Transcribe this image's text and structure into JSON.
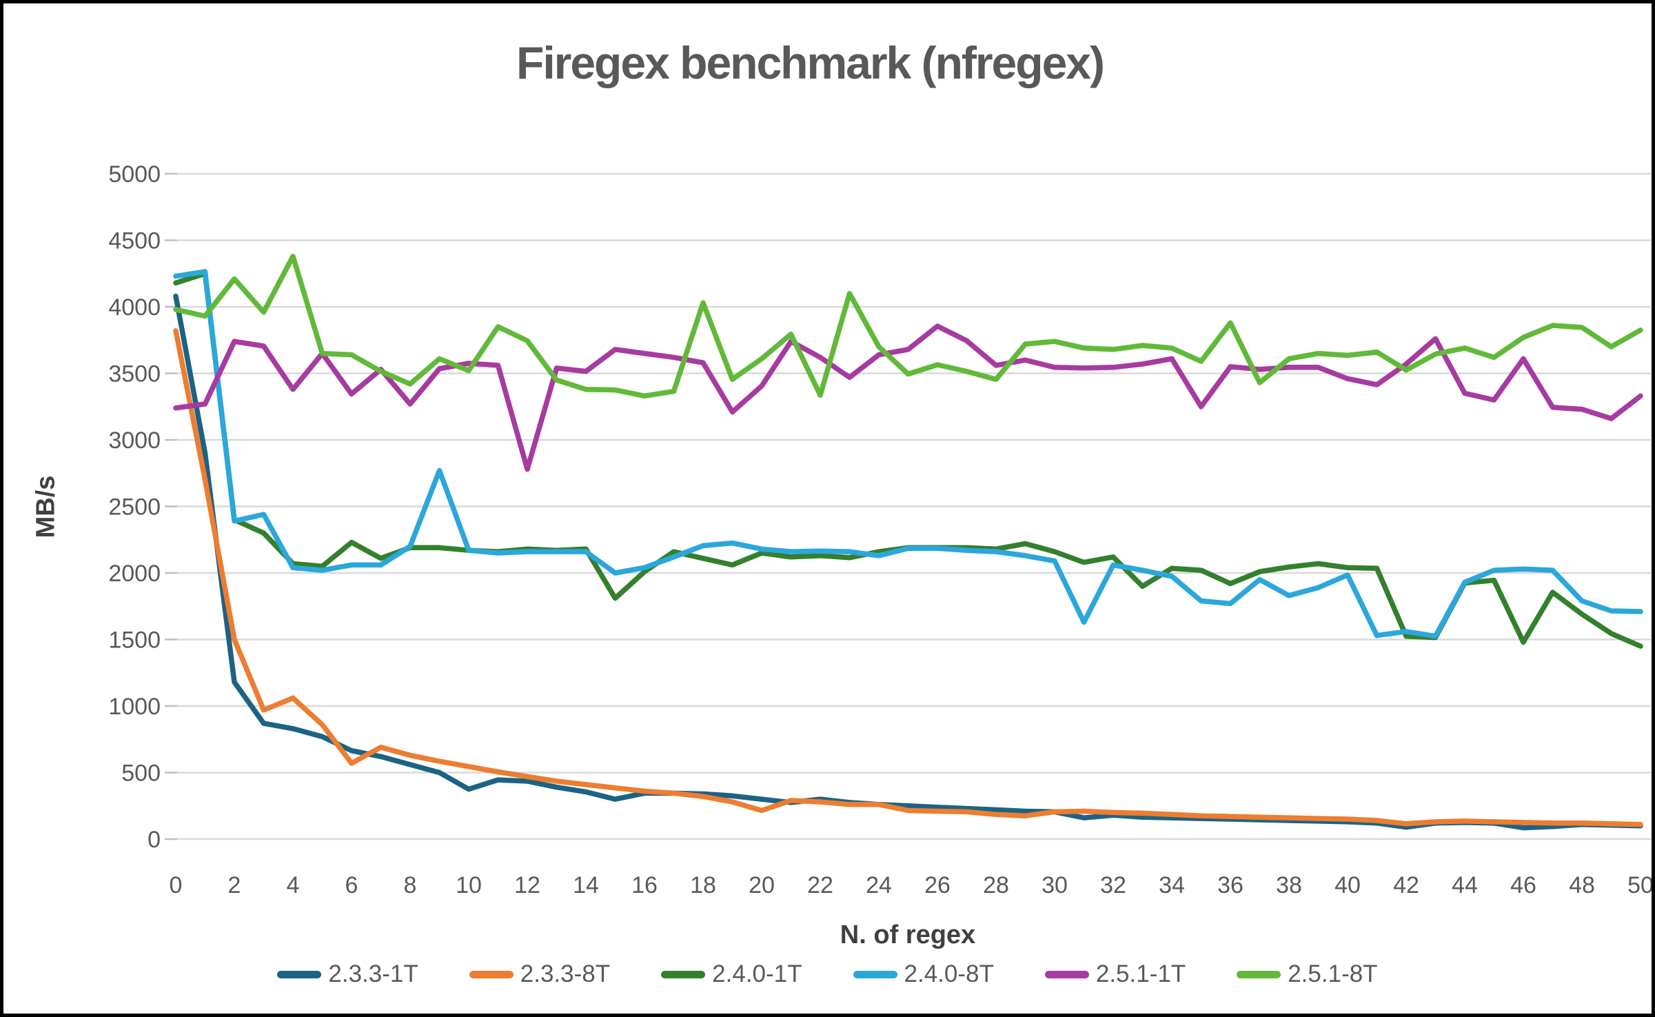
{
  "title": "Firegex benchmark (nfregex)",
  "chart_data": {
    "type": "line",
    "title": "Firegex benchmark (nfregex)",
    "xlabel": "N. of regex",
    "ylabel": "MB/s",
    "xlim": [
      0,
      50
    ],
    "ylim": [
      0,
      5000
    ],
    "grid": true,
    "legend_position": "bottom",
    "x_ticks": [
      0,
      2,
      4,
      6,
      8,
      10,
      12,
      14,
      16,
      18,
      20,
      22,
      24,
      26,
      28,
      30,
      32,
      34,
      36,
      38,
      40,
      42,
      44,
      46,
      48,
      50
    ],
    "y_ticks": [
      0,
      500,
      1000,
      1500,
      2000,
      2500,
      3000,
      3500,
      4000,
      4500,
      5000
    ],
    "x": [
      0,
      1,
      2,
      3,
      4,
      5,
      6,
      7,
      8,
      9,
      10,
      11,
      12,
      13,
      14,
      15,
      16,
      17,
      18,
      19,
      20,
      21,
      22,
      23,
      24,
      25,
      26,
      27,
      28,
      29,
      30,
      31,
      32,
      33,
      34,
      35,
      36,
      37,
      38,
      39,
      40,
      41,
      42,
      43,
      44,
      45,
      46,
      47,
      48,
      49,
      50
    ],
    "series": [
      {
        "name": "2.3.3-1T",
        "color": "#1C6383",
        "values": [
          4080,
          2900,
          1180,
          870,
          830,
          770,
          665,
          620,
          560,
          500,
          375,
          445,
          435,
          390,
          355,
          300,
          345,
          345,
          340,
          325,
          300,
          275,
          300,
          275,
          260,
          250,
          240,
          230,
          220,
          210,
          205,
          160,
          180,
          165,
          160,
          155,
          150,
          145,
          140,
          135,
          130,
          120,
          90,
          120,
          125,
          120,
          85,
          95,
          110,
          105,
          100
        ]
      },
      {
        "name": "2.3.3-8T",
        "color": "#ED7D31",
        "values": [
          3820,
          2700,
          1500,
          970,
          1060,
          860,
          570,
          690,
          630,
          585,
          545,
          505,
          470,
          435,
          410,
          385,
          360,
          345,
          320,
          280,
          215,
          290,
          280,
          260,
          260,
          215,
          210,
          205,
          185,
          175,
          205,
          210,
          200,
          195,
          185,
          175,
          170,
          165,
          160,
          155,
          150,
          140,
          115,
          130,
          135,
          130,
          125,
          120,
          120,
          115,
          110
        ]
      },
      {
        "name": "2.4.0-1T",
        "color": "#33802D",
        "values": [
          4180,
          4250,
          2400,
          2300,
          2070,
          2050,
          2230,
          2110,
          2190,
          2190,
          2170,
          2160,
          2180,
          2170,
          2180,
          1810,
          2010,
          2160,
          2110,
          2060,
          2150,
          2120,
          2130,
          2115,
          2160,
          2190,
          2190,
          2190,
          2180,
          2220,
          2160,
          2080,
          2120,
          1900,
          2035,
          2020,
          1920,
          2010,
          2045,
          2070,
          2040,
          2035,
          1525,
          1515,
          1925,
          1945,
          1480,
          1855,
          1690,
          1545,
          1450
        ]
      },
      {
        "name": "2.4.0-8T",
        "color": "#2BA7DC",
        "values": [
          4230,
          4265,
          2390,
          2440,
          2040,
          2020,
          2060,
          2060,
          2200,
          2770,
          2170,
          2150,
          2160,
          2160,
          2160,
          2000,
          2040,
          2120,
          2205,
          2225,
          2180,
          2160,
          2165,
          2160,
          2130,
          2185,
          2185,
          2170,
          2160,
          2130,
          2090,
          1630,
          2060,
          2020,
          1975,
          1790,
          1770,
          1950,
          1830,
          1890,
          1985,
          1530,
          1560,
          1525,
          1930,
          2020,
          2030,
          2020,
          1790,
          1715,
          1710
        ]
      },
      {
        "name": "2.5.1-1T",
        "color": "#A63BA0",
        "values": [
          3240,
          3270,
          3740,
          3705,
          3380,
          3650,
          3345,
          3530,
          3270,
          3535,
          3575,
          3560,
          2780,
          3540,
          3515,
          3680,
          3650,
          3620,
          3580,
          3210,
          3405,
          3740,
          3620,
          3470,
          3640,
          3680,
          3855,
          3745,
          3560,
          3600,
          3545,
          3540,
          3545,
          3570,
          3610,
          3250,
          3550,
          3530,
          3545,
          3545,
          3460,
          3415,
          3570,
          3760,
          3350,
          3300,
          3610,
          3245,
          3230,
          3160,
          3330
        ]
      },
      {
        "name": "2.5.1-8T",
        "color": "#62B939",
        "values": [
          3980,
          3930,
          4210,
          3960,
          4380,
          3650,
          3640,
          3515,
          3420,
          3610,
          3520,
          3850,
          3745,
          3450,
          3380,
          3375,
          3330,
          3365,
          4030,
          3455,
          3610,
          3795,
          3335,
          4100,
          3700,
          3495,
          3565,
          3515,
          3455,
          3720,
          3740,
          3690,
          3680,
          3710,
          3690,
          3590,
          3880,
          3430,
          3610,
          3650,
          3635,
          3660,
          3525,
          3645,
          3690,
          3620,
          3770,
          3860,
          3845,
          3700,
          3825
        ]
      }
    ],
    "colors": {
      "gridline": "#D9D9D9",
      "tick_mark": "#BFBFBF",
      "text": "#595959",
      "frame_border": "#000000"
    }
  }
}
